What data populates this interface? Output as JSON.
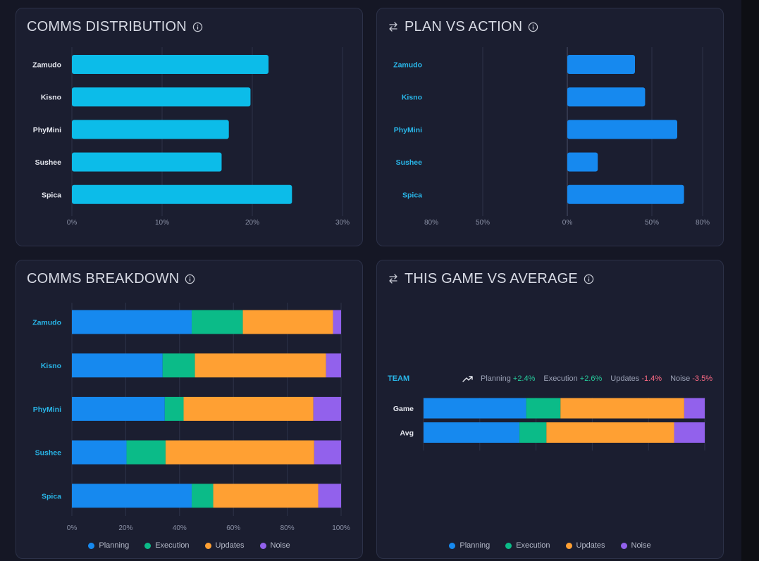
{
  "colors": {
    "cyan": "#0cbce9",
    "blue": "#1689ef",
    "planning": "#1689ef",
    "execution": "#0bbb88",
    "updates": "#ffa033",
    "noise": "#9261ec",
    "label_cyan": "#29b6e8",
    "label_white": "#e6e8ef",
    "tick": "#8b91a6",
    "grid": "#2d3249"
  },
  "cards": {
    "distribution": {
      "title": "COMMS DISTRIBUTION",
      "icon": "info-icon"
    },
    "plan_vs_action": {
      "title": "PLAN VS ACTION",
      "icon": "swap-icon"
    },
    "breakdown": {
      "title": "COMMS BREAKDOWN",
      "icon": "info-icon"
    },
    "game_vs_avg": {
      "title": "THIS GAME VS AVERAGE",
      "icon": "swap-icon"
    }
  },
  "legend": [
    "Planning",
    "Execution",
    "Updates",
    "Noise"
  ],
  "team_summary": {
    "label": "TEAM",
    "icon": "trend-up-icon",
    "metrics": [
      {
        "name": "Planning",
        "delta": "+2.4%",
        "sign": "pos"
      },
      {
        "name": "Execution",
        "delta": "+2.6%",
        "sign": "pos"
      },
      {
        "name": "Updates",
        "delta": "-1.4%",
        "sign": "neg"
      },
      {
        "name": "Noise",
        "delta": "-3.5%",
        "sign": "neg"
      }
    ]
  },
  "chart_data": [
    {
      "id": "distribution",
      "type": "bar",
      "orientation": "horizontal",
      "categories": [
        "Zamudo",
        "Kisno",
        "PhyMini",
        "Sushee",
        "Spica"
      ],
      "values": [
        21.8,
        19.8,
        17.4,
        16.6,
        24.4
      ],
      "xlim": [
        0,
        30
      ],
      "xticks": [
        "0%",
        "10%",
        "20%",
        "30%"
      ],
      "grid": true
    },
    {
      "id": "plan_vs_action",
      "type": "bar",
      "orientation": "horizontal",
      "categories": [
        "Zamudo",
        "Kisno",
        "PhyMini",
        "Sushee",
        "Spica"
      ],
      "values": [
        40,
        46,
        65,
        18,
        69
      ],
      "xlim": [
        -80,
        80
      ],
      "xticks": [
        "80%",
        "50%",
        "0%",
        "50%",
        "80%"
      ],
      "grid": true
    },
    {
      "id": "breakdown",
      "type": "bar",
      "orientation": "horizontal",
      "stacked": true,
      "categories": [
        "Zamudo",
        "Kisno",
        "PhyMini",
        "Sushee",
        "Spica"
      ],
      "series": [
        {
          "name": "Planning",
          "values": [
            44.5,
            33.7,
            34.5,
            20.3,
            44.5
          ]
        },
        {
          "name": "Execution",
          "values": [
            19,
            12,
            7,
            14.5,
            8
          ]
        },
        {
          "name": "Updates",
          "values": [
            33.5,
            48.7,
            48.2,
            55.2,
            39
          ]
        },
        {
          "name": "Noise",
          "values": [
            3,
            5.6,
            10.3,
            10,
            8.5
          ]
        }
      ],
      "xlim": [
        0,
        100
      ],
      "xticks": [
        "0%",
        "20%",
        "40%",
        "60%",
        "80%",
        "100%"
      ]
    },
    {
      "id": "game_vs_avg",
      "type": "bar",
      "orientation": "horizontal",
      "stacked": true,
      "categories": [
        "Game",
        "Avg"
      ],
      "series": [
        {
          "name": "Planning",
          "values": [
            36.5,
            34.1
          ]
        },
        {
          "name": "Execution",
          "values": [
            12.2,
            9.6
          ]
        },
        {
          "name": "Updates",
          "values": [
            44.0,
            45.4
          ]
        },
        {
          "name": "Noise",
          "values": [
            7.3,
            10.9
          ]
        }
      ],
      "xlim": [
        0,
        100
      ]
    }
  ]
}
